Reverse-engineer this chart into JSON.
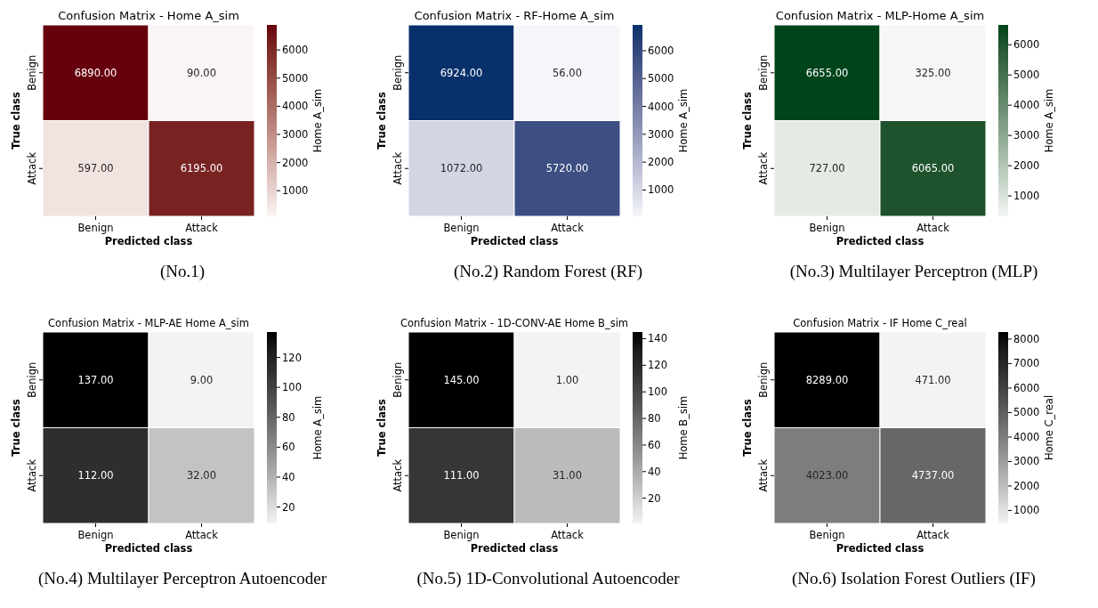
{
  "chart_data": [
    {
      "type": "heatmap",
      "title": "Confusion Matrix - Home A_sim",
      "xlabel": "Predicted class",
      "ylabel": "True class",
      "clabel": "Home A_sim",
      "categories": [
        "Benign",
        "Attack"
      ],
      "y_categories": [
        "Benign",
        "Attack"
      ],
      "cells": [
        [
          6890,
          90
        ],
        [
          597,
          6195
        ]
      ],
      "cell_labels": [
        [
          "6890.00",
          "90.00"
        ],
        [
          "597.00",
          "6195.00"
        ]
      ],
      "clim": [
        90,
        6890
      ],
      "cticks": [
        1000,
        2000,
        3000,
        4000,
        5000,
        6000
      ],
      "color": "#67000d",
      "annotations": [
        "(No.1)"
      ]
    },
    {
      "type": "heatmap",
      "title": "Confusion Matrix - RF-Home A_sim",
      "xlabel": "Predicted class",
      "ylabel": "True class",
      "clabel": "Home A_sim",
      "categories": [
        "Benign",
        "Attack"
      ],
      "y_categories": [
        "Benign",
        "Attack"
      ],
      "cells": [
        [
          6924,
          56
        ],
        [
          1072,
          5720
        ]
      ],
      "cell_labels": [
        [
          "6924.00",
          "56.00"
        ],
        [
          "1072.00",
          "5720.00"
        ]
      ],
      "clim": [
        56,
        6924
      ],
      "cticks": [
        1000,
        2000,
        3000,
        4000,
        5000,
        6000
      ],
      "color": "#08306b",
      "annotations": [
        "(No.2) Random Forest (RF)"
      ]
    },
    {
      "type": "heatmap",
      "title": "Confusion Matrix - MLP-Home A_sim",
      "xlabel": "Predicted class",
      "ylabel": "True class",
      "clabel": "Home A_sim",
      "categories": [
        "Benign",
        "Attack"
      ],
      "y_categories": [
        "Benign",
        "Attack"
      ],
      "cells": [
        [
          6655,
          325
        ],
        [
          727,
          6065
        ]
      ],
      "cell_labels": [
        [
          "6655.00",
          "325.00"
        ],
        [
          "727.00",
          "6065.00"
        ]
      ],
      "clim": [
        325,
        6655
      ],
      "cticks": [
        1000,
        2000,
        3000,
        4000,
        5000,
        6000
      ],
      "color": "#00441b",
      "annotations": [
        "(No.3) Multilayer Perceptron (MLP)"
      ]
    },
    {
      "type": "heatmap",
      "title": "Confusion Matrix - MLP-AE Home A_sim",
      "xlabel": "Predicted class",
      "ylabel": "True class",
      "clabel": "Home A_sim",
      "categories": [
        "Benign",
        "Attack"
      ],
      "y_categories": [
        "Benign",
        "Attack"
      ],
      "cells": [
        [
          137,
          9
        ],
        [
          112,
          32
        ]
      ],
      "cell_labels": [
        [
          "137.00",
          "9.00"
        ],
        [
          "112.00",
          "32.00"
        ]
      ],
      "clim": [
        9,
        137
      ],
      "cticks": [
        20,
        40,
        60,
        80,
        100,
        120
      ],
      "color": "#000000",
      "annotations": [
        "(No.4) Multilayer Perceptron Autoencoder"
      ]
    },
    {
      "type": "heatmap",
      "title": "Confusion Matrix - 1D-CONV-AE Home B_sim",
      "xlabel": "Predicted class",
      "ylabel": "True class",
      "clabel": "Home B_sim",
      "categories": [
        "Benign",
        "Attack"
      ],
      "y_categories": [
        "Benign",
        "Attack"
      ],
      "cells": [
        [
          145,
          1
        ],
        [
          111,
          31
        ]
      ],
      "cell_labels": [
        [
          "145.00",
          "1.00"
        ],
        [
          "111.00",
          "31.00"
        ]
      ],
      "clim": [
        1,
        145
      ],
      "cticks": [
        20,
        40,
        60,
        80,
        100,
        120,
        140
      ],
      "color": "#000000",
      "annotations": [
        "(No.5) 1D-Convolutional Autoencoder"
      ]
    },
    {
      "type": "heatmap",
      "title": "Confusion Matrix - IF Home C_real",
      "xlabel": "Predicted class",
      "ylabel": "True class",
      "clabel": "Home C_real",
      "categories": [
        "Benign",
        "Attack"
      ],
      "y_categories": [
        "Benign",
        "Attack"
      ],
      "cells": [
        [
          8289,
          471
        ],
        [
          4023,
          4737
        ]
      ],
      "cell_labels": [
        [
          "8289.00",
          "471.00"
        ],
        [
          "4023.00",
          "4737.00"
        ]
      ],
      "clim": [
        471,
        8289
      ],
      "cticks": [
        1000,
        2000,
        3000,
        4000,
        5000,
        6000,
        7000,
        8000
      ],
      "color": "#000000",
      "annotations": [
        "(No.6) Isolation Forest Outliers (IF)"
      ]
    }
  ]
}
